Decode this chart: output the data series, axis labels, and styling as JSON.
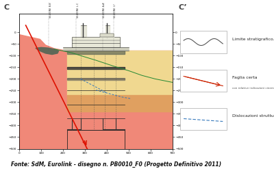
{
  "bg_color": "#ffffff",
  "caption": "Fonte: SdM, Eurolink - disegno n. PB0010_F0 (Progetto Definitivo 2011)",
  "caption_fontsize": 5.5,
  "label_C_left": "C",
  "label_C_right": "C’",
  "section_labels": [
    "SEZIONE B-B'",
    "SEZIONE L-C",
    "SEZIONE A-A'",
    "SEZIONE I-I'"
  ],
  "bg_main": "#f08878",
  "bg_yellow": "#f0d890",
  "bg_orange": "#e0a060",
  "pilone_color": "#333333",
  "red_fault_color": "#dd1100",
  "blue_struct_color": "#3377bb",
  "green_line_color": "#228833",
  "sea_dark": "#606858",
  "sea_mid": "#888870",
  "xlim": [
    0,
    700
  ],
  "ylim": [
    -500,
    80
  ],
  "ytick_step": 50,
  "xtick_step": 100
}
